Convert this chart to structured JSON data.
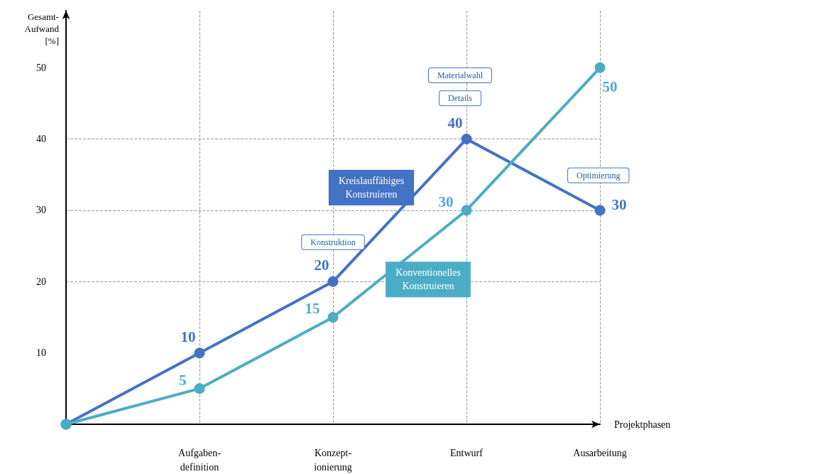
{
  "chart_data": {
    "type": "line",
    "ylabel": "Gesamt-\nAufwand\n[%]",
    "xlabel": "Projektphasen",
    "categories": [
      null,
      "Aufgaben-\ndefinition",
      "Konzept-\nionierung",
      "Entwurf",
      "Ausarbeitung"
    ],
    "series": [
      {
        "name": "Kreislauffähiges Konstruieren",
        "color": "#4472c4",
        "values": [
          0,
          10,
          20,
          40,
          30
        ],
        "value_labels": [
          null,
          "10",
          "20",
          "40",
          "30"
        ]
      },
      {
        "name": "Konventionelles Konstruieren",
        "color": "#4bacc6",
        "values": [
          0,
          5,
          15,
          30,
          50
        ],
        "value_labels": [
          null,
          "5",
          "15",
          "30",
          "50"
        ]
      }
    ],
    "ylim": [
      0,
      58
    ],
    "yticks": [
      10,
      20,
      30,
      40,
      50
    ],
    "grid": true,
    "legend": false,
    "marker": "circle",
    "line_style": "solid",
    "annotations": [
      "Materialwahl",
      "Details",
      "Konstruktion",
      "Optimierung"
    ]
  }
}
